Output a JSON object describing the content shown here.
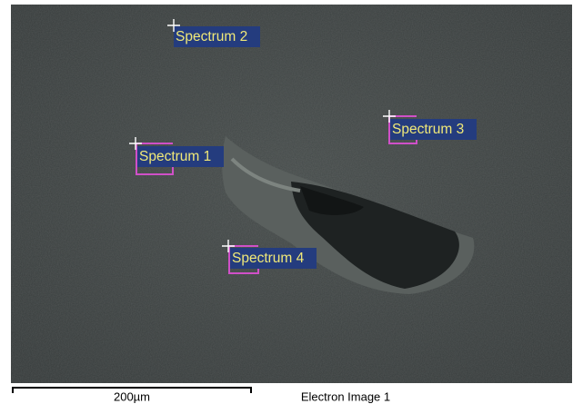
{
  "spectra": [
    {
      "label": "Spectrum 1"
    },
    {
      "label": "Spectrum 2"
    },
    {
      "label": "Spectrum 3"
    },
    {
      "label": "Spectrum 4"
    }
  ],
  "scale_bar": {
    "label": "200µm"
  },
  "caption": "Electron Image 1"
}
